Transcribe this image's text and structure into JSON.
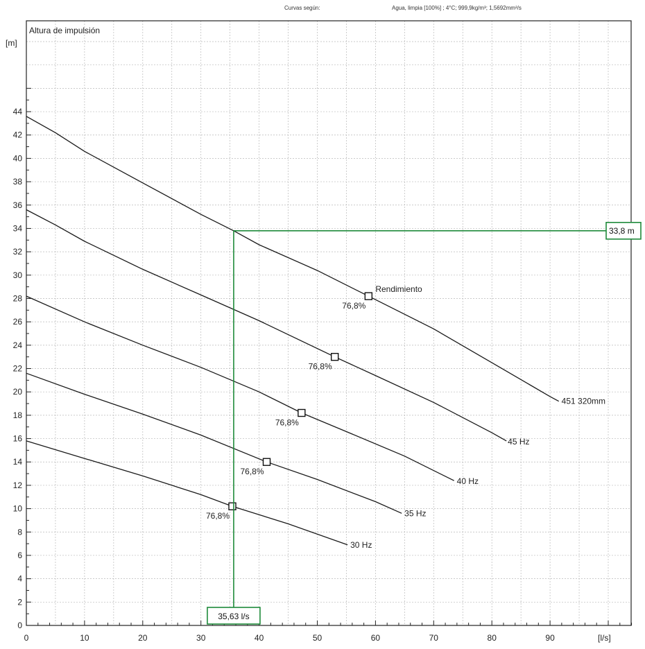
{
  "header": {
    "curves_label": "Curvas según:",
    "fluid": "Agua, limpia [100%] ; 4°C; 999,9kg/m³; 1,5692mm²/s"
  },
  "chart_data": {
    "type": "line",
    "title": "Altura de impulsión",
    "ylabel": "[m]",
    "xlabel": "[l/s]",
    "xlim": [
      0,
      105
    ],
    "ylim": [
      0,
      46
    ],
    "xticks": [
      0,
      10,
      20,
      30,
      40,
      50,
      60,
      70,
      80,
      90
    ],
    "yticks": [
      0,
      2,
      4,
      6,
      8,
      10,
      12,
      14,
      16,
      18,
      20,
      22,
      24,
      26,
      28,
      30,
      32,
      34,
      36,
      38,
      40,
      42,
      44
    ],
    "grid": true,
    "series": [
      {
        "name": "451 320mm",
        "x": [
          0,
          5,
          10,
          20,
          30,
          35.63,
          40,
          50,
          58.8,
          70,
          80,
          90,
          91.5
        ],
        "y": [
          43.6,
          42.2,
          40.6,
          37.9,
          35.2,
          33.8,
          32.6,
          30.4,
          28.2,
          25.4,
          22.5,
          19.6,
          19.2
        ],
        "bep": {
          "x": 58.8,
          "y": 28.2,
          "label": "76,8%"
        }
      },
      {
        "name": "45 Hz",
        "x": [
          0,
          5,
          10,
          20,
          30,
          40,
          53,
          60,
          70,
          80,
          82.5
        ],
        "y": [
          35.6,
          34.3,
          32.9,
          30.5,
          28.3,
          26.1,
          23.0,
          21.4,
          19.1,
          16.5,
          15.8
        ],
        "bep": {
          "x": 53,
          "y": 23.0,
          "label": "76,8%"
        }
      },
      {
        "name": "40 Hz",
        "x": [
          0,
          10,
          20,
          30,
          40,
          47.3,
          55,
          65,
          73.5
        ],
        "y": [
          28.2,
          26.0,
          24.0,
          22.1,
          20.0,
          18.2,
          16.6,
          14.5,
          12.4
        ],
        "bep": {
          "x": 47.3,
          "y": 18.2,
          "label": "76,8%"
        }
      },
      {
        "name": "35 Hz",
        "x": [
          0,
          10,
          20,
          30,
          41.3,
          50,
          60,
          64.5
        ],
        "y": [
          21.6,
          19.8,
          18.1,
          16.3,
          14.0,
          12.5,
          10.6,
          9.6
        ],
        "bep": {
          "x": 41.3,
          "y": 14.0,
          "label": "76,8%"
        }
      },
      {
        "name": "30 Hz",
        "x": [
          0,
          10,
          20,
          30,
          35.4,
          45,
          55.2
        ],
        "y": [
          15.8,
          14.3,
          12.8,
          11.2,
          10.2,
          8.7,
          6.9
        ],
        "bep": {
          "x": 35.4,
          "y": 10.2,
          "label": "76,8%"
        }
      }
    ],
    "annotations": {
      "efficiency_label": "Rendimiento",
      "operating_point": {
        "x": 35.63,
        "y": 33.8,
        "x_label": "35,63 l/s",
        "y_label": "33,8 m"
      }
    },
    "colors": {
      "curve": "#1a1a1a",
      "operating_line": "#1e8a3a",
      "grid": "#b8b8b8"
    }
  }
}
